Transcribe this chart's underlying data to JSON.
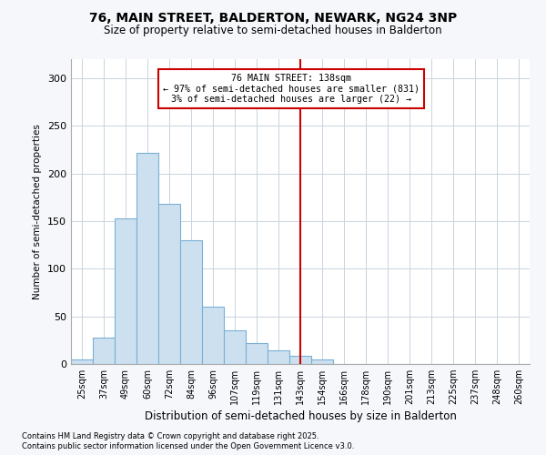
{
  "title1": "76, MAIN STREET, BALDERTON, NEWARK, NG24 3NP",
  "title2": "Size of property relative to semi-detached houses in Balderton",
  "xlabel": "Distribution of semi-detached houses by size in Balderton",
  "ylabel": "Number of semi-detached properties",
  "footnote1": "Contains HM Land Registry data © Crown copyright and database right 2025.",
  "footnote2": "Contains public sector information licensed under the Open Government Licence v3.0.",
  "categories": [
    "25sqm",
    "37sqm",
    "49sqm",
    "60sqm",
    "72sqm",
    "84sqm",
    "96sqm",
    "107sqm",
    "119sqm",
    "131sqm",
    "143sqm",
    "154sqm",
    "166sqm",
    "178sqm",
    "190sqm",
    "201sqm",
    "213sqm",
    "225sqm",
    "237sqm",
    "248sqm",
    "260sqm"
  ],
  "values": [
    5,
    28,
    153,
    222,
    168,
    130,
    60,
    35,
    22,
    14,
    9,
    5,
    0,
    0,
    0,
    0,
    0,
    0,
    0,
    0,
    0
  ],
  "highlight_index": 10,
  "bar_color": "#cce0f0",
  "bar_edge_color": "#7ab0d4",
  "annotation_line1": "76 MAIN STREET: 138sqm",
  "annotation_line2": "← 97% of semi-detached houses are smaller (831)",
  "annotation_line3": "3% of semi-detached houses are larger (22) →",
  "annotation_box_color": "#cc0000",
  "vline_color": "#cc0000",
  "ylim": [
    0,
    320
  ],
  "yticks": [
    0,
    50,
    100,
    150,
    200,
    250,
    300
  ],
  "bg_color": "#f5f7fa",
  "plot_bg_color": "#ffffff",
  "grid_color": "#c8d4e0"
}
